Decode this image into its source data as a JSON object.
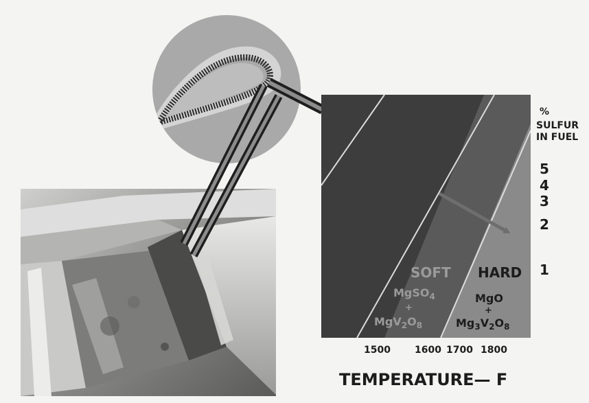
{
  "diagram": {
    "sulfur_label": [
      "%",
      "SULFUR",
      "IN FUEL"
    ],
    "sulfur_ticks": [
      "5",
      "4",
      "3",
      "2",
      "1"
    ],
    "temperature_ticks": [
      "1500",
      "1600",
      "1700",
      "1800"
    ],
    "temperature_axis_label": "TEMPERATURE— F",
    "regions": {
      "soft": {
        "label": "SOFT",
        "formula_line1_main": "MgSO",
        "formula_line1_sub": "4",
        "plus": "+",
        "formula_line2_a": "MgV",
        "formula_line2_sub1": "2",
        "formula_line2_b": "O",
        "formula_line2_sub2": "8"
      },
      "hard": {
        "label": "HARD",
        "formula_line1_main": "MgO",
        "plus": "+",
        "formula_line2_a": "Mg",
        "formula_line2_sub1": "3",
        "formula_line2_b": "V",
        "formula_line2_sub2": "2",
        "formula_line2_c": "O",
        "formula_line2_sub3": "8"
      }
    },
    "colors": {
      "chart_dark": "#3d3d3d",
      "chart_mid": "#5a5a5a",
      "chart_light": "#8a8a8a",
      "band_line": "#dcdcdc",
      "text_dark": "#1c1c1c",
      "region_text": "#9a9a9a",
      "callout_circle": "#a9a9a9"
    }
  }
}
